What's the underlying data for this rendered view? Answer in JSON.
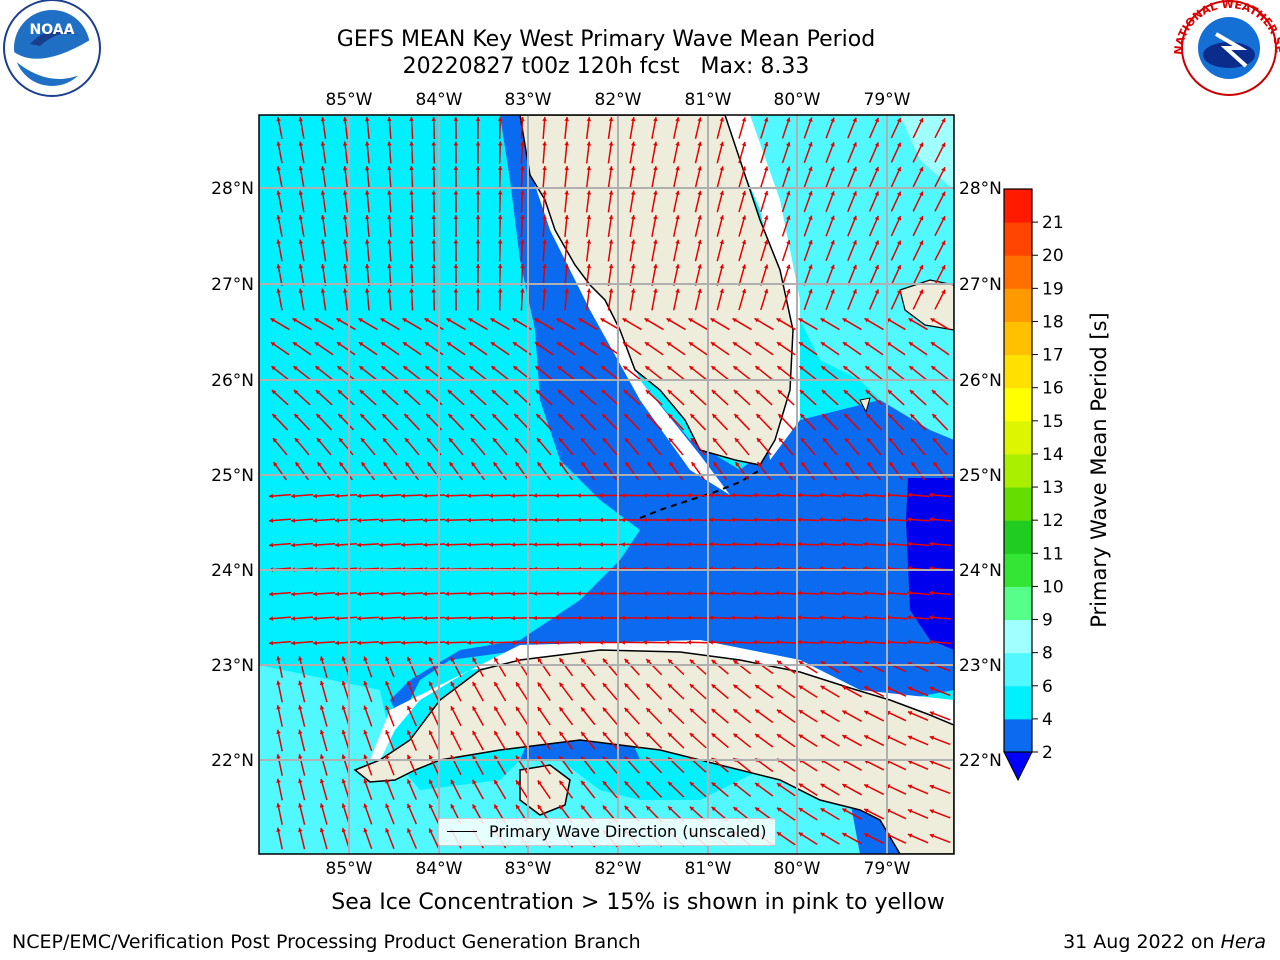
{
  "header": {
    "title_line1": "GEFS MEAN Key West Primary Wave Mean Period",
    "title_line2": "20220827 t00z 120h fcst   Max: 8.33"
  },
  "map": {
    "lon_labels": [
      "85°W",
      "84°W",
      "83°W",
      "82°W",
      "81°W",
      "80°W",
      "79°W"
    ],
    "lat_labels": [
      "28°N",
      "27°N",
      "26°N",
      "25°N",
      "24°N",
      "23°N",
      "22°N"
    ],
    "legend_label": "Primary Wave Direction (unscaled)",
    "arrow_color": "#e60000",
    "land_color": "#eeeddc"
  },
  "colorbar": {
    "label": "Primary Wave Mean Period [s]",
    "ticks": [
      "2",
      "4",
      "6",
      "8",
      "9",
      "10",
      "11",
      "12",
      "13",
      "14",
      "15",
      "16",
      "17",
      "18",
      "19",
      "20",
      "21"
    ],
    "colors": [
      "#0a6af0",
      "#00f0ff",
      "#52f8ff",
      "#a0ffff",
      "#55ff88",
      "#33e633",
      "#1fcc1f",
      "#66dd00",
      "#aaee00",
      "#ddf500",
      "#ffff00",
      "#ffe000",
      "#ffc000",
      "#ff9900",
      "#ff7000",
      "#ff4500",
      "#ff1a00"
    ],
    "under_color": "#0000ff"
  },
  "note": "Sea Ice Concentration > 15% is shown in pink to yellow",
  "footer": {
    "left": "NCEP/EMC/Verification Post Processing Product Generation Branch",
    "right_date": "31 Aug 2022 on ",
    "right_host": "Hera"
  },
  "logos": {
    "noaa_text": "NOAA",
    "nws_text": "NATIONAL WEATHER SERVICE"
  }
}
